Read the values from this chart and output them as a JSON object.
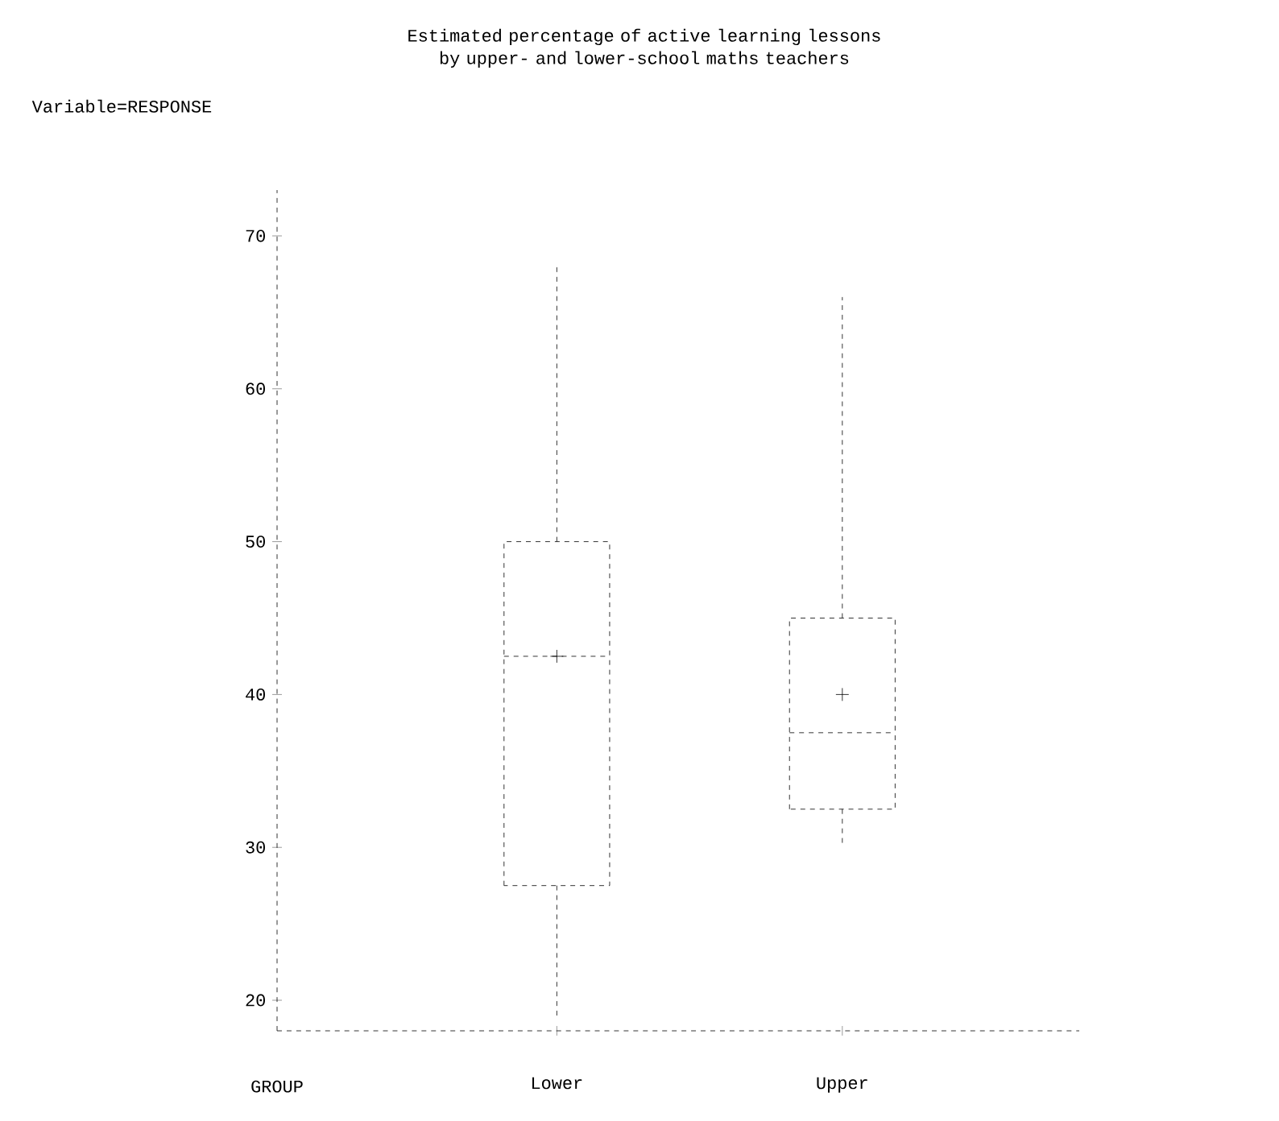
{
  "chart_data": {
    "type": "box",
    "title": "Estimated percentage of active learning lessons by upper- and lower-school maths teachers",
    "subtitle": "Variable=RESPONSE",
    "xlabel": "GROUP",
    "categories": [
      "Lower",
      "Upper"
    ],
    "boxes": [
      {
        "low": 19,
        "q1": 27.5,
        "median": 42.5,
        "q3": 50,
        "high": 68,
        "mean": 42.5
      },
      {
        "low": 30,
        "q1": 32.5,
        "median": 37.5,
        "q3": 45,
        "high": 66,
        "mean": 40
      }
    ],
    "ylim": [
      18,
      73
    ],
    "yticks": [
      20,
      30,
      40,
      50,
      60,
      70
    ],
    "line_style": "dashed"
  }
}
